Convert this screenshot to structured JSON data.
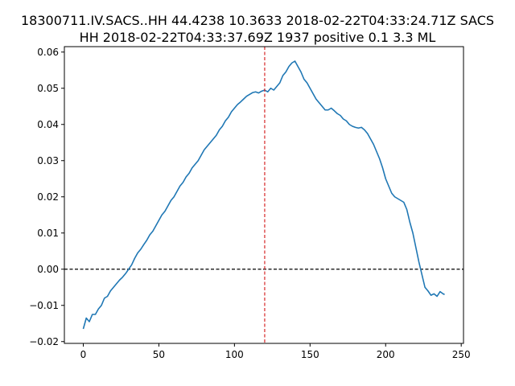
{
  "chart_data": {
    "type": "line",
    "title_line1": "18300711.IV.SACS..HH 44.4238 10.3633 2018-02-22T04:33:24.71Z SACS",
    "title_line2": "HH 2018-02-22T04:33:37.69Z 1937 positive 0.1 3.3 ML",
    "xlabel": "",
    "ylabel": "",
    "xlim": [
      -12.5,
      251.5
    ],
    "ylim": [
      -0.0205,
      0.0615
    ],
    "x_ticks": [
      0,
      50,
      100,
      150,
      200,
      250
    ],
    "x_tick_labels": [
      "0",
      "50",
      "100",
      "150",
      "200",
      "250"
    ],
    "y_ticks": [
      -0.02,
      -0.01,
      0.0,
      0.01,
      0.02,
      0.03,
      0.04,
      0.05,
      0.06
    ],
    "y_tick_labels": [
      "−0.02",
      "−0.01",
      "0.00",
      "0.01",
      "0.02",
      "0.03",
      "0.04",
      "0.05",
      "0.06"
    ],
    "grid": false,
    "colors": {
      "series": "#1f77b4",
      "vline": "#d62728",
      "hline": "#000000"
    },
    "hline": {
      "y": 0.0,
      "style": "dashed"
    },
    "vline": {
      "x": 120,
      "style": "dashed"
    },
    "series": [
      {
        "x": [
          0,
          2,
          4,
          6,
          8,
          10,
          12,
          14,
          16,
          18,
          20,
          22,
          24,
          26,
          28,
          30,
          32,
          34,
          36,
          38,
          40,
          42,
          44,
          46,
          48,
          50,
          52,
          54,
          56,
          58,
          60,
          62,
          64,
          66,
          68,
          70,
          72,
          74,
          76,
          78,
          80,
          82,
          84,
          86,
          88,
          90,
          92,
          94,
          96,
          98,
          100,
          102,
          104,
          106,
          108,
          110,
          112,
          114,
          116,
          118,
          120,
          122,
          124,
          126,
          128,
          130,
          132,
          134,
          136,
          138,
          140,
          142,
          144,
          146,
          148,
          150,
          152,
          154,
          156,
          158,
          160,
          162,
          164,
          166,
          168,
          170,
          172,
          174,
          176,
          178,
          180,
          182,
          184,
          186,
          188,
          190,
          192,
          194,
          196,
          198,
          200,
          202,
          204,
          206,
          208,
          210,
          212,
          214,
          216,
          218,
          220,
          222,
          224,
          226,
          228,
          230,
          232,
          234,
          236,
          238,
          239
        ],
        "y": [
          -0.0165,
          -0.0135,
          -0.0145,
          -0.0125,
          -0.0125,
          -0.011,
          -0.01,
          -0.008,
          -0.0075,
          -0.006,
          -0.005,
          -0.004,
          -0.003,
          -0.0022,
          -0.0012,
          0.0,
          0.0012,
          0.003,
          0.0045,
          0.0055,
          0.0068,
          0.008,
          0.0095,
          0.0105,
          0.012,
          0.0135,
          0.015,
          0.016,
          0.0175,
          0.019,
          0.02,
          0.0215,
          0.023,
          0.024,
          0.0255,
          0.0265,
          0.028,
          0.029,
          0.03,
          0.0315,
          0.033,
          0.034,
          0.035,
          0.036,
          0.037,
          0.0385,
          0.0395,
          0.041,
          0.042,
          0.0435,
          0.0445,
          0.0455,
          0.0462,
          0.047,
          0.0478,
          0.0483,
          0.0488,
          0.049,
          0.0487,
          0.0492,
          0.0495,
          0.049,
          0.05,
          0.0495,
          0.0505,
          0.0515,
          0.0535,
          0.0545,
          0.056,
          0.057,
          0.0575,
          0.056,
          0.0545,
          0.0525,
          0.0515,
          0.05,
          0.0485,
          0.047,
          0.046,
          0.045,
          0.044,
          0.044,
          0.0445,
          0.0438,
          0.043,
          0.0425,
          0.0415,
          0.041,
          0.04,
          0.0395,
          0.0392,
          0.039,
          0.0392,
          0.0385,
          0.0375,
          0.036,
          0.0345,
          0.0325,
          0.0305,
          0.028,
          0.025,
          0.023,
          0.021,
          0.02,
          0.0195,
          0.019,
          0.0185,
          0.0165,
          0.013,
          0.01,
          0.006,
          0.002,
          -0.0015,
          -0.005,
          -0.006,
          -0.0072,
          -0.0068,
          -0.0075,
          -0.0062,
          -0.0068,
          -0.007
        ]
      }
    ]
  }
}
